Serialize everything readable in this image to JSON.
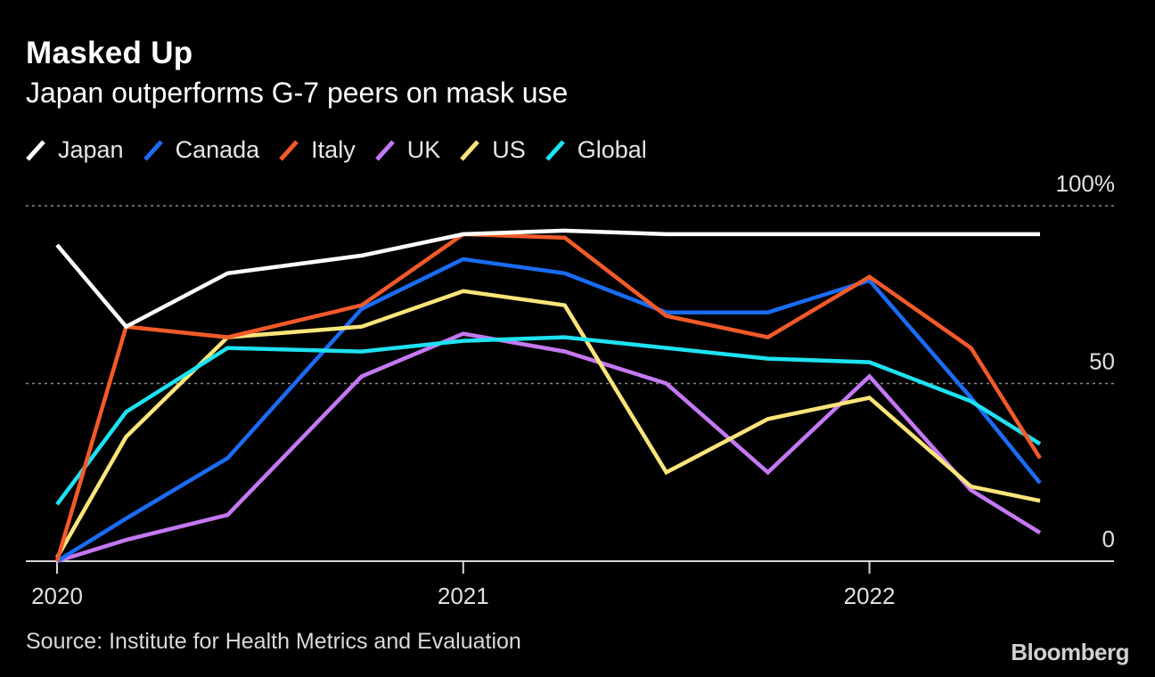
{
  "chart_data": {
    "type": "line",
    "title": "Masked Up",
    "subtitle": "Japan outperforms G-7 peers on mask use",
    "ylim": [
      0,
      100
    ],
    "y_ticks": [
      {
        "value": 0,
        "label": "0"
      },
      {
        "value": 50,
        "label": "50"
      },
      {
        "value": 100,
        "label": "100%"
      }
    ],
    "gridlines": [
      50,
      100
    ],
    "x_ticks": [
      {
        "value": 2020.0,
        "label": "2020"
      },
      {
        "value": 2021.0,
        "label": "2021"
      },
      {
        "value": 2022.0,
        "label": "2022"
      }
    ],
    "xlim": [
      2019.93,
      2022.53
    ],
    "x": [
      2020.0,
      2020.17,
      2020.42,
      2020.75,
      2021.0,
      2021.25,
      2021.5,
      2021.75,
      2022.0,
      2022.25,
      2022.42
    ],
    "legend_position": "top-left",
    "series": [
      {
        "name": "Japan",
        "color": "#ffffff",
        "values": [
          89,
          66,
          81,
          86,
          92,
          93,
          92,
          92,
          92,
          92,
          92
        ]
      },
      {
        "name": "Canada",
        "color": "#1a6cf5",
        "values": [
          0,
          12,
          29,
          71,
          85,
          81,
          70,
          70,
          79,
          46,
          22
        ]
      },
      {
        "name": "Italy",
        "color": "#f25a2a",
        "values": [
          0,
          66,
          63,
          72,
          92,
          91,
          69,
          63,
          80,
          60,
          29
        ]
      },
      {
        "name": "UK",
        "color": "#c478f2",
        "values": [
          0,
          6,
          13,
          52,
          64,
          59,
          50,
          25,
          52,
          20,
          8
        ]
      },
      {
        "name": "US",
        "color": "#fbe57a",
        "values": [
          1,
          35,
          63,
          66,
          76,
          72,
          25,
          40,
          46,
          21,
          17
        ]
      },
      {
        "name": "Global",
        "color": "#1ee2f2",
        "values": [
          16,
          42,
          60,
          59,
          62,
          63,
          60,
          57,
          56,
          45,
          33
        ]
      }
    ]
  },
  "source": "Source: Institute for Health Metrics and Evaluation",
  "brand": "Bloomberg"
}
